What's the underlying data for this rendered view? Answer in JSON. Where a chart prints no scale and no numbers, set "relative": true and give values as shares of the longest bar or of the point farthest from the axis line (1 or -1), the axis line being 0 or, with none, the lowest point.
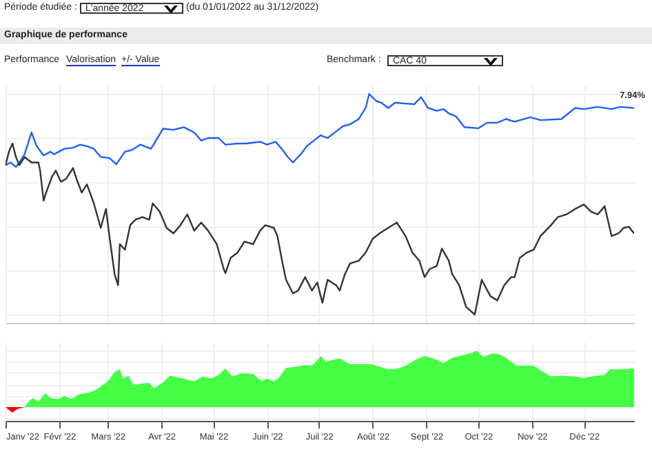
{
  "chart_data": [
    {
      "type": "line",
      "title": "Graphique de performance",
      "relative": true,
      "grid": true,
      "tick_labels": false,
      "xlim": [
        "2022-01-01",
        "2022-12-30"
      ],
      "xticks": [
        {
          "value": "2022-01-01",
          "label": null
        },
        {
          "value": "2022-02-01",
          "label": null
        },
        {
          "value": "2022-03-01",
          "label": null
        },
        {
          "value": "2022-04-01",
          "label": null
        },
        {
          "value": "2022-05-01",
          "label": null
        },
        {
          "value": "2022-06-01",
          "label": null
        },
        {
          "value": "2022-07-01",
          "label": null
        },
        {
          "value": "2022-08-01",
          "label": null
        },
        {
          "value": "2022-09-01",
          "label": null
        },
        {
          "value": "2022-10-01",
          "label": null
        },
        {
          "value": "2022-11-01",
          "label": null
        },
        {
          "value": "2022-12-01",
          "label": null
        }
      ],
      "annotations": [
        "Période étudiée :",
        "L'année 2022",
        "(du 01/01/2022 au 31/12/2022)",
        "Performance",
        "Valorisation",
        "+/- Value",
        "Benchmark :",
        "CAC 40",
        {
          "text": "7.94%",
          "x": "2022-12-30",
          "y": 0.936
        }
      ],
      "series": [
        {
          "color": "#1f5fff",
          "x": [
            "2022-01-01",
            "2022-01-04",
            "2022-01-07",
            "2022-01-09",
            "2022-01-12",
            "2022-01-16",
            "2022-01-19",
            "2022-01-23",
            "2022-01-27",
            "2022-01-29",
            "2022-02-04",
            "2022-02-09",
            "2022-02-13",
            "2022-02-17",
            "2022-02-21",
            "2022-02-25",
            "2022-03-02",
            "2022-03-06",
            "2022-03-11",
            "2022-03-15",
            "2022-03-20",
            "2022-03-26",
            "2022-04-02",
            "2022-04-08",
            "2022-04-14",
            "2022-04-20",
            "2022-04-24",
            "2022-04-28",
            "2022-05-04",
            "2022-05-08",
            "2022-05-15",
            "2022-05-20",
            "2022-05-28",
            "2022-06-01",
            "2022-06-06",
            "2022-06-10",
            "2022-06-13",
            "2022-06-16",
            "2022-06-21",
            "2022-06-24",
            "2022-06-28",
            "2022-07-02",
            "2022-07-06",
            "2022-07-11",
            "2022-07-15",
            "2022-07-19",
            "2022-07-24",
            "2022-07-28",
            "2022-07-30",
            "2022-08-03",
            "2022-08-06",
            "2022-08-10",
            "2022-08-14",
            "2022-08-20",
            "2022-08-25",
            "2022-08-29",
            "2022-09-02",
            "2022-09-07",
            "2022-09-11",
            "2022-09-14",
            "2022-09-18",
            "2022-09-23",
            "2022-10-01",
            "2022-10-06",
            "2022-10-12",
            "2022-10-17",
            "2022-10-22",
            "2022-10-31",
            "2022-11-06",
            "2022-11-18",
            "2022-11-26",
            "2022-12-01",
            "2022-12-09",
            "2022-12-17",
            "2022-12-22",
            "2022-12-30"
          ],
          "values": [
            0.677,
            0.689,
            0.669,
            0.689,
            0.726,
            0.825,
            0.763,
            0.721,
            0.738,
            0.726,
            0.751,
            0.756,
            0.77,
            0.763,
            0.751,
            0.714,
            0.709,
            0.681,
            0.738,
            0.746,
            0.77,
            0.751,
            0.842,
            0.837,
            0.849,
            0.825,
            0.788,
            0.8,
            0.8,
            0.77,
            0.775,
            0.775,
            0.783,
            0.77,
            0.783,
            0.746,
            0.714,
            0.689,
            0.731,
            0.763,
            0.788,
            0.812,
            0.8,
            0.83,
            0.854,
            0.862,
            0.886,
            0.936,
            1,
            0.968,
            0.96,
            0.936,
            0.96,
            0.956,
            0.953,
            0.985,
            0.936,
            0.923,
            0.931,
            0.911,
            0.899,
            0.849,
            0.844,
            0.869,
            0.869,
            0.886,
            0.874,
            0.894,
            0.881,
            0.886,
            0.936,
            0.931,
            0.941,
            0.931,
            0.941,
            0.936
          ]
        },
        {
          "color": "#333333",
          "x": [
            "2022-01-01",
            "2022-01-03",
            "2022-01-05",
            "2022-01-07",
            "2022-01-09",
            "2022-01-12",
            "2022-01-16",
            "2022-01-20",
            "2022-01-21",
            "2022-01-23",
            "2022-01-25",
            "2022-01-28",
            "2022-01-30",
            "2022-02-02",
            "2022-02-05",
            "2022-02-09",
            "2022-02-11",
            "2022-02-14",
            "2022-02-17",
            "2022-02-21",
            "2022-02-25",
            "2022-02-28",
            "2022-03-02",
            "2022-03-05",
            "2022-03-07",
            "2022-03-08",
            "2022-03-11",
            "2022-03-14",
            "2022-03-17",
            "2022-03-21",
            "2022-03-25",
            "2022-03-27",
            "2022-03-31",
            "2022-04-04",
            "2022-04-08",
            "2022-04-12",
            "2022-04-16",
            "2022-04-20",
            "2022-04-24",
            "2022-04-28",
            "2022-05-03",
            "2022-05-07",
            "2022-05-08",
            "2022-05-11",
            "2022-05-15",
            "2022-05-19",
            "2022-05-24",
            "2022-05-28",
            "2022-05-31",
            "2022-06-05",
            "2022-06-07",
            "2022-06-10",
            "2022-06-12",
            "2022-06-16",
            "2022-06-19",
            "2022-06-23",
            "2022-06-27",
            "2022-06-30",
            "2022-07-03",
            "2022-07-06",
            "2022-07-11",
            "2022-07-13",
            "2022-07-16",
            "2022-07-19",
            "2022-07-24",
            "2022-07-28",
            "2022-08-01",
            "2022-08-05",
            "2022-08-10",
            "2022-08-15",
            "2022-08-20",
            "2022-08-24",
            "2022-08-28",
            "2022-08-31",
            "2022-09-03",
            "2022-09-07",
            "2022-09-10",
            "2022-09-14",
            "2022-09-16",
            "2022-09-20",
            "2022-09-24",
            "2022-09-29",
            "2022-10-03",
            "2022-10-08",
            "2022-10-12",
            "2022-10-16",
            "2022-10-20",
            "2022-10-22",
            "2022-10-25",
            "2022-10-29",
            "2022-11-02",
            "2022-11-06",
            "2022-11-12",
            "2022-11-16",
            "2022-11-21",
            "2022-11-26",
            "2022-12-01",
            "2022-12-05",
            "2022-12-09",
            "2022-12-13",
            "2022-12-17",
            "2022-12-21",
            "2022-12-24",
            "2022-12-27",
            "2022-12-30"
          ],
          "values": [
            0.677,
            0.738,
            0.775,
            0.714,
            0.677,
            0.714,
            0.689,
            0.689,
            0.652,
            0.516,
            0.565,
            0.627,
            0.652,
            0.602,
            0.615,
            0.664,
            0.615,
            0.553,
            0.59,
            0.504,
            0.393,
            0.479,
            0.356,
            0.183,
            0.133,
            0.319,
            0.294,
            0.405,
            0.43,
            0.442,
            0.43,
            0.504,
            0.467,
            0.393,
            0.368,
            0.405,
            0.454,
            0.38,
            0.417,
            0.38,
            0.319,
            0.207,
            0.188,
            0.257,
            0.281,
            0.331,
            0.319,
            0.38,
            0.405,
            0.393,
            0.356,
            0.232,
            0.158,
            0.096,
            0.109,
            0.17,
            0.109,
            0.146,
            0.054,
            0.158,
            0.133,
            0.109,
            0.183,
            0.232,
            0.244,
            0.281,
            0.343,
            0.368,
            0.393,
            0.417,
            0.356,
            0.281,
            0.244,
            0.17,
            0.207,
            0.22,
            0.299,
            0.244,
            0.183,
            0.133,
            0.035,
            0,
            0.158,
            0.084,
            0.064,
            0.133,
            0.17,
            0.17,
            0.257,
            0.281,
            0.294,
            0.356,
            0.405,
            0.442,
            0.454,
            0.479,
            0.499,
            0.467,
            0.454,
            0.491,
            0.356,
            0.368,
            0.393,
            0.398,
            0.368
          ]
        }
      ]
    },
    {
      "type": "area",
      "relative": true,
      "grid": true,
      "xlim": [
        "2022-01-01",
        "2022-12-30"
      ],
      "xticks": [
        {
          "value": "2022-01-01",
          "label": "Janv '22"
        },
        {
          "value": "2022-02-01",
          "label": "Févr '22"
        },
        {
          "value": "2022-03-01",
          "label": "Mars '22"
        },
        {
          "value": "2022-04-01",
          "label": "Avr '22"
        },
        {
          "value": "2022-05-01",
          "label": "Mai '22"
        },
        {
          "value": "2022-06-01",
          "label": "Juin '22"
        },
        {
          "value": "2022-07-01",
          "label": "Juil '22"
        },
        {
          "value": "2022-08-01",
          "label": "Août '22"
        },
        {
          "value": "2022-09-01",
          "label": "Sept '22"
        },
        {
          "value": "2022-10-01",
          "label": "Oct '22"
        },
        {
          "value": "2022-11-01",
          "label": "Nov '22"
        },
        {
          "value": "2022-12-01",
          "label": "Déc '22"
        }
      ],
      "series": [
        {
          "color": "#44ff44",
          "x": [
            "2022-01-12",
            "2022-01-15",
            "2022-01-17",
            "2022-01-20",
            "2022-01-24",
            "2022-01-27",
            "2022-01-31",
            "2022-02-04",
            "2022-02-08",
            "2022-02-13",
            "2022-02-17",
            "2022-02-22",
            "2022-02-25",
            "2022-02-28",
            "2022-03-02",
            "2022-03-05",
            "2022-03-08",
            "2022-03-10",
            "2022-03-13",
            "2022-03-16",
            "2022-03-20",
            "2022-03-25",
            "2022-03-28",
            "2022-04-02",
            "2022-04-06",
            "2022-04-12",
            "2022-04-20",
            "2022-04-25",
            "2022-04-30",
            "2022-05-04",
            "2022-05-08",
            "2022-05-12",
            "2022-05-17",
            "2022-05-24",
            "2022-05-29",
            "2022-06-01",
            "2022-06-05",
            "2022-06-08",
            "2022-06-12",
            "2022-06-18",
            "2022-06-23",
            "2022-06-27",
            "2022-06-30",
            "2022-07-02",
            "2022-07-05",
            "2022-07-13",
            "2022-07-19",
            "2022-07-25",
            "2022-07-31",
            "2022-08-05",
            "2022-08-10",
            "2022-08-16",
            "2022-08-21",
            "2022-08-26",
            "2022-08-31",
            "2022-09-05",
            "2022-09-11",
            "2022-09-16",
            "2022-09-23",
            "2022-09-28",
            "2022-09-30",
            "2022-10-04",
            "2022-10-09",
            "2022-10-13",
            "2022-10-17",
            "2022-10-23",
            "2022-11-02",
            "2022-11-06",
            "2022-11-12",
            "2022-11-18",
            "2022-11-26",
            "2022-12-01",
            "2022-12-08",
            "2022-12-13",
            "2022-12-16",
            "2022-12-22",
            "2022-12-30"
          ],
          "values": [
            0,
            0.121,
            0.159,
            0.096,
            0.248,
            0.159,
            0.14,
            0.197,
            0.14,
            0.236,
            0.248,
            0.299,
            0.363,
            0.427,
            0.49,
            0.618,
            0.669,
            0.503,
            0.554,
            0.395,
            0.414,
            0.427,
            0.331,
            0.439,
            0.554,
            0.516,
            0.459,
            0.541,
            0.503,
            0.567,
            0.682,
            0.541,
            0.599,
            0.586,
            0.459,
            0.503,
            0.459,
            0.522,
            0.694,
            0.713,
            0.745,
            0.732,
            0.822,
            0.904,
            0.809,
            0.86,
            0.758,
            0.758,
            0.758,
            0.713,
            0.669,
            0.682,
            0.745,
            0.841,
            0.904,
            0.86,
            0.777,
            0.873,
            0.924,
            0.968,
            1,
            0.885,
            0.949,
            0.936,
            0.873,
            0.732,
            0.732,
            0.65,
            0.541,
            0.554,
            0.541,
            0.516,
            0.554,
            0.567,
            0.669,
            0.669,
            0.682
          ]
        },
        {
          "color": "#ff0000",
          "x": [
            "2022-01-01",
            "2022-01-03",
            "2022-01-05",
            "2022-01-08",
            "2022-01-12"
          ],
          "values": [
            0,
            -0.051,
            -0.096,
            -0.032,
            0
          ]
        }
      ]
    }
  ]
}
